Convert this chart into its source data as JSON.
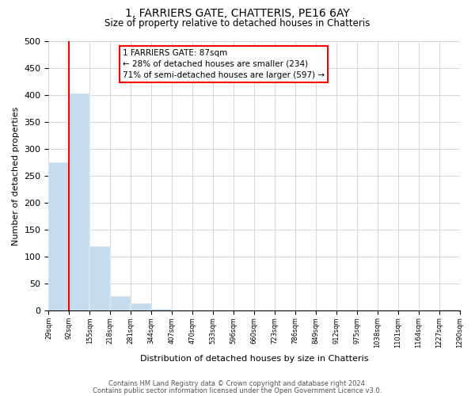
{
  "title": "1, FARRIERS GATE, CHATTERIS, PE16 6AY",
  "subtitle": "Size of property relative to detached houses in Chatteris",
  "bar_values": [
    275,
    403,
    120,
    27,
    14,
    3,
    0,
    0,
    0,
    0,
    0,
    0,
    0,
    0,
    0,
    0,
    0,
    0,
    0,
    2
  ],
  "bin_labels": [
    "29sqm",
    "92sqm",
    "155sqm",
    "218sqm",
    "281sqm",
    "344sqm",
    "407sqm",
    "470sqm",
    "533sqm",
    "596sqm",
    "660sqm",
    "723sqm",
    "786sqm",
    "849sqm",
    "912sqm",
    "975sqm",
    "1038sqm",
    "1101sqm",
    "1164sqm",
    "1227sqm",
    "1290sqm"
  ],
  "bar_color": "#c5dced",
  "ylabel": "Number of detached properties",
  "xlabel": "Distribution of detached houses by size in Chatteris",
  "ylim": [
    0,
    500
  ],
  "yticks": [
    0,
    50,
    100,
    150,
    200,
    250,
    300,
    350,
    400,
    450,
    500
  ],
  "annotation_title": "1 FARRIERS GATE: 87sqm",
  "annotation_line1": "← 28% of detached houses are smaller (234)",
  "annotation_line2": "71% of semi-detached houses are larger (597) →",
  "footer_line1": "Contains HM Land Registry data © Crown copyright and database right 2024.",
  "footer_line2": "Contains public sector information licensed under the Open Government Licence v3.0.",
  "background_color": "#ffffff",
  "grid_color": "#ccd8e2"
}
